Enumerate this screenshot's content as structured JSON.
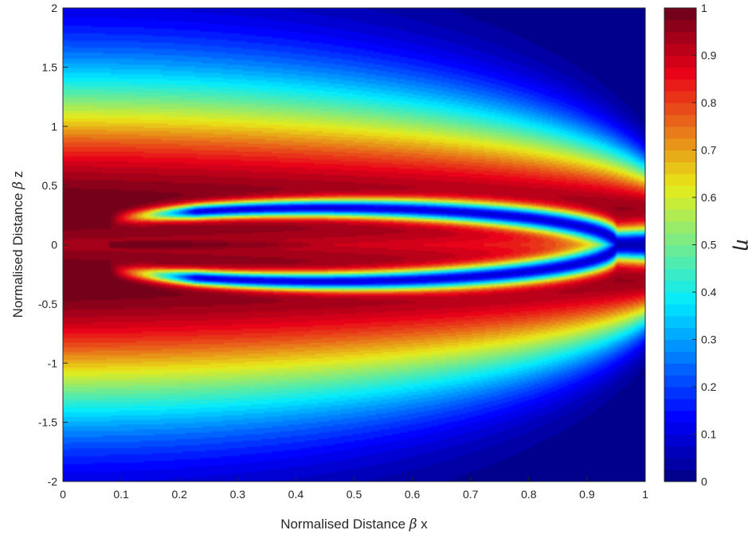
{
  "chart_data": {
    "type": "heatmap",
    "title": "",
    "xlabel": {
      "prefix": "Normalised Distance ",
      "symbol": "β",
      "suffix": " x"
    },
    "ylabel": {
      "prefix": "Normalised Distance ",
      "symbol": "β",
      "suffix": " z"
    },
    "xlim": [
      0,
      1
    ],
    "ylim": [
      -2,
      2
    ],
    "x_ticks": [
      0,
      0.1,
      0.2,
      0.3,
      0.4,
      0.5,
      0.6,
      0.7,
      0.8,
      0.9,
      1
    ],
    "x_tick_labels": [
      "0",
      "0.1",
      "0.2",
      "0.3",
      "0.4",
      "0.5",
      "0.6",
      "0.7",
      "0.8",
      "0.9",
      "1"
    ],
    "y_ticks": [
      2,
      1.5,
      1,
      0.5,
      0,
      -0.5,
      -1,
      -1.5,
      -2
    ],
    "y_tick_labels": [
      "2",
      "1.5",
      "1",
      "0.5",
      "0",
      "-0.5",
      "-1",
      "-1.5",
      "-2"
    ],
    "colorbar": {
      "label": "η",
      "range": [
        0,
        1
      ],
      "ticks": [
        1,
        0.9,
        0.8,
        0.7,
        0.6,
        0.5,
        0.4,
        0.3,
        0.2,
        0.1,
        0
      ],
      "tick_labels": [
        "1",
        "0.9",
        "0.8",
        "0.7",
        "0.6",
        "0.5",
        "0.4",
        "0.3",
        "0.2",
        "0.1",
        "0"
      ],
      "colormap": "jet",
      "levels": 40
    },
    "field_description": {
      "outer_lobes": {
        "center_z": [
          0.3,
          -0.3
        ],
        "half_width_at_x0": 1.25,
        "extent_x": 1.0
      },
      "central_lobe": {
        "center_z": 0,
        "half_width_max": 0.22,
        "extent_x": 0.94
      },
      "cusp_x": 0.08,
      "peak_value": 1
    },
    "grid": false
  }
}
